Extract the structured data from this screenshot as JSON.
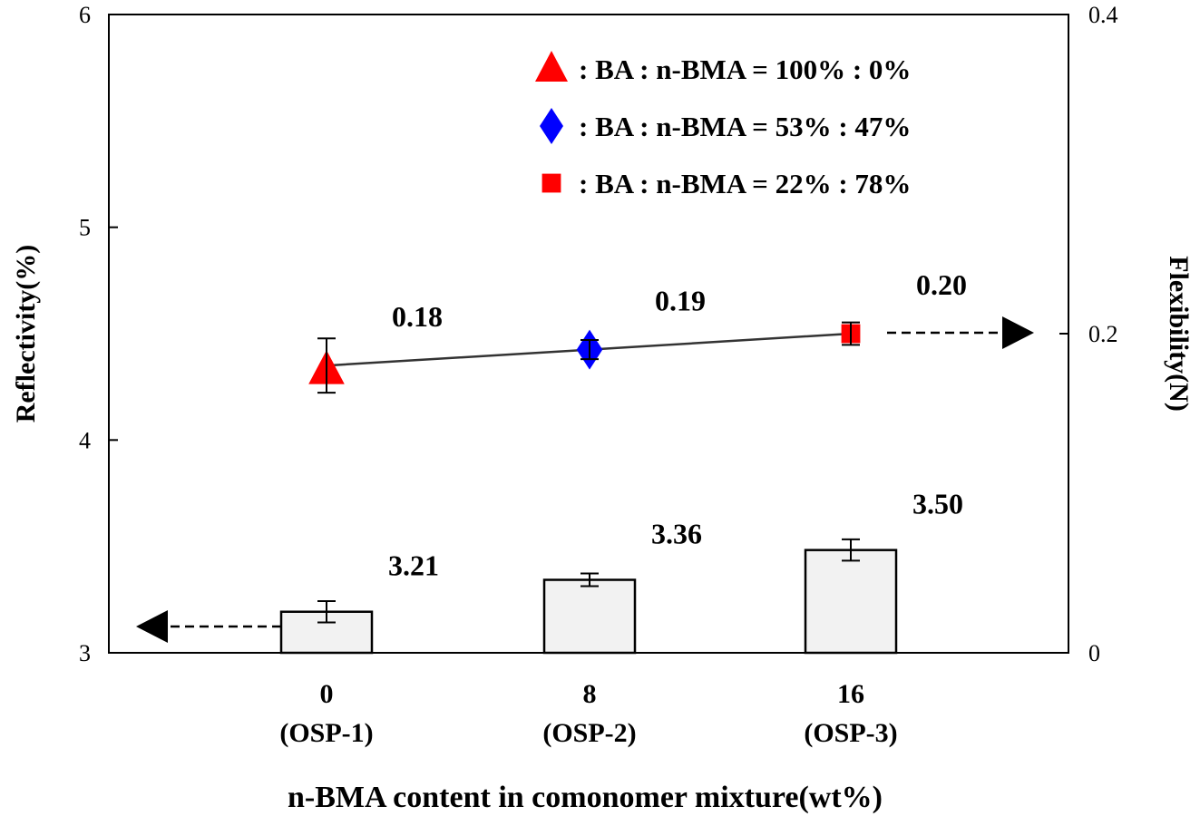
{
  "chart_data": {
    "type": "bar+line",
    "xlabel": "n-BMA content in comonomer mixture(wt%)",
    "ylabel_left": "Reflectivity(%)",
    "ylabel_right": "Flexibility(N)",
    "categories": [
      "0",
      "8",
      "16"
    ],
    "category_sublabels": [
      "(OSP-1)",
      "(OSP-2)",
      "(OSP-3)"
    ],
    "ylim_left": [
      3,
      6
    ],
    "yticks_left": [
      "3",
      "4",
      "5",
      "6"
    ],
    "ylim_right": [
      0,
      0.4
    ],
    "yticks_right": [
      "0",
      "0.2",
      "0.4"
    ],
    "bars": {
      "axis": "left",
      "values": [
        3.21,
        3.36,
        3.5
      ],
      "errors": [
        0.05,
        0.03,
        0.05
      ],
      "labels": [
        "3.21",
        "3.36",
        "3.50"
      ],
      "color": "#f2f2f2"
    },
    "line": {
      "axis": "right",
      "values": [
        0.18,
        0.19,
        0.2
      ],
      "errors": [
        0.017,
        0.006,
        0.007
      ],
      "labels": [
        "0.18",
        "0.19",
        "0.20"
      ],
      "markers": [
        "triangle",
        "diamond",
        "square"
      ],
      "marker_colors": [
        "#ff0000",
        "#0000ff",
        "#ff0000"
      ]
    },
    "legend": [
      {
        "marker": "triangle",
        "color": "#ff0000",
        "text": ":  BA : n-BMA = 100% : 0%"
      },
      {
        "marker": "diamond",
        "color": "#0000ff",
        "text": ":  BA : n-BMA = 53% : 47%"
      },
      {
        "marker": "square",
        "color": "#ff0000",
        "text": ":  BA : n-BMA = 22% : 78%"
      }
    ],
    "legend_position": "top-right",
    "grid": false
  }
}
